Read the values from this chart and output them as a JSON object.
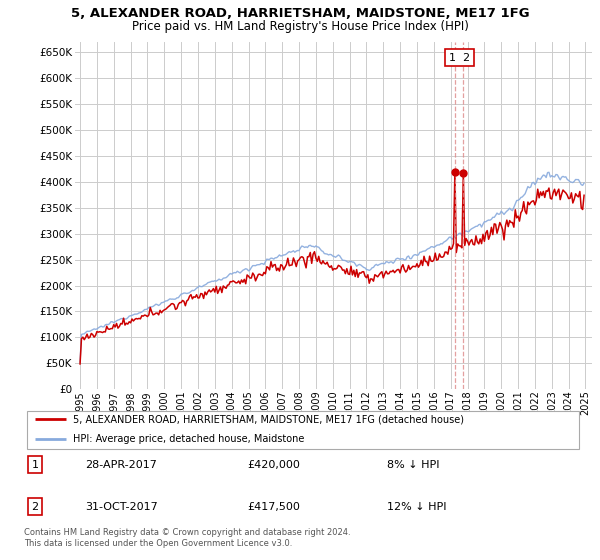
{
  "title": "5, ALEXANDER ROAD, HARRIETSHAM, MAIDSTONE, ME17 1FG",
  "subtitle": "Price paid vs. HM Land Registry's House Price Index (HPI)",
  "legend_label_red": "5, ALEXANDER ROAD, HARRIETSHAM, MAIDSTONE, ME17 1FG (detached house)",
  "legend_label_blue": "HPI: Average price, detached house, Maidstone",
  "transaction1_date": "28-APR-2017",
  "transaction1_price": "£420,000",
  "transaction1_hpi": "8% ↓ HPI",
  "transaction2_date": "31-OCT-2017",
  "transaction2_price": "£417,500",
  "transaction2_hpi": "12% ↓ HPI",
  "footer": "Contains HM Land Registry data © Crown copyright and database right 2024.\nThis data is licensed under the Open Government Licence v3.0.",
  "ylim": [
    0,
    670000
  ],
  "yticks": [
    0,
    50000,
    100000,
    150000,
    200000,
    250000,
    300000,
    350000,
    400000,
    450000,
    500000,
    550000,
    600000,
    650000
  ],
  "color_red": "#cc0000",
  "color_blue": "#88aadd",
  "color_grid": "#cccccc",
  "color_bg": "#ffffff",
  "vline_color": "#dd8888"
}
